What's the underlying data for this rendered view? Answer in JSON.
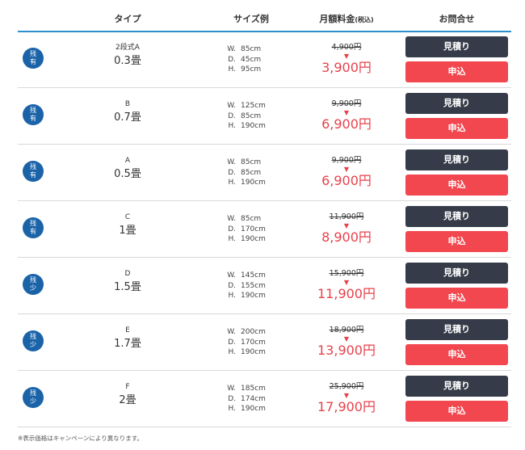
{
  "header": {
    "type": "タイプ",
    "size": "サイズ例",
    "price": "月額料金",
    "price_tax": "(税込)",
    "contact": "お問合せ"
  },
  "dim_labels": {
    "w": "W.",
    "d": "D.",
    "h": "H."
  },
  "rows": [
    {
      "badge_top": "残",
      "badge_bottom": "有",
      "code": "2段式A",
      "size": "0.3畳",
      "w": "85cm",
      "d": "45cm",
      "h": "95cm",
      "old_price": "4,900円",
      "arrow": "▼",
      "new_price": "3,900円",
      "estimate": "見積り",
      "apply": "申込"
    },
    {
      "badge_top": "残",
      "badge_bottom": "有",
      "code": "B",
      "size": "0.7畳",
      "w": "125cm",
      "d": "85cm",
      "h": "190cm",
      "old_price": "9,900円",
      "arrow": "▼",
      "new_price": "6,900円",
      "estimate": "見積り",
      "apply": "申込"
    },
    {
      "badge_top": "残",
      "badge_bottom": "有",
      "code": "A",
      "size": "0.5畳",
      "w": "85cm",
      "d": "85cm",
      "h": "190cm",
      "old_price": "9,900円",
      "arrow": "▼",
      "new_price": "6,900円",
      "estimate": "見積り",
      "apply": "申込"
    },
    {
      "badge_top": "残",
      "badge_bottom": "有",
      "code": "C",
      "size": "1畳",
      "w": "85cm",
      "d": "170cm",
      "h": "190cm",
      "old_price": "11,900円",
      "arrow": "▼",
      "new_price": "8,900円",
      "estimate": "見積り",
      "apply": "申込"
    },
    {
      "badge_top": "残",
      "badge_bottom": "少",
      "code": "D",
      "size": "1.5畳",
      "w": "145cm",
      "d": "155cm",
      "h": "190cm",
      "old_price": "15,900円",
      "arrow": "▼",
      "new_price": "11,900円",
      "estimate": "見積り",
      "apply": "申込"
    },
    {
      "badge_top": "残",
      "badge_bottom": "少",
      "code": "E",
      "size": "1.7畳",
      "w": "200cm",
      "d": "170cm",
      "h": "190cm",
      "old_price": "18,900円",
      "arrow": "▼",
      "new_price": "13,900円",
      "estimate": "見積り",
      "apply": "申込"
    },
    {
      "badge_top": "残",
      "badge_bottom": "少",
      "code": "F",
      "size": "2畳",
      "w": "185cm",
      "d": "174cm",
      "h": "190cm",
      "old_price": "25,900円",
      "arrow": "▼",
      "new_price": "17,900円",
      "estimate": "見積り",
      "apply": "申込"
    }
  ],
  "note": "※表示価格はキャンペーンにより異なります。",
  "colors": {
    "accent": "#2e8fd0",
    "badge": "#1a63a8",
    "price_red": "#e8414b",
    "estimate_btn": "#353b48",
    "apply_btn": "#f2474f"
  }
}
